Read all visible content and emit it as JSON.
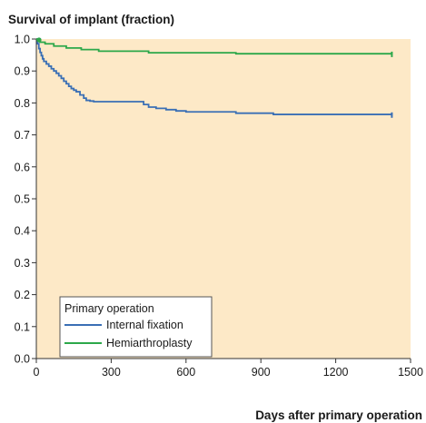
{
  "chart_data": {
    "type": "line",
    "ylabel": "Survival of implant (fraction)",
    "xlabel": "Days after primary operation",
    "xlim": [
      0,
      1500
    ],
    "ylim": [
      0.0,
      1.0
    ],
    "x_ticks": [
      0,
      300,
      600,
      900,
      1200,
      1500
    ],
    "x_tick_labels": [
      "0",
      "300",
      "600",
      "900",
      "1200",
      "1500"
    ],
    "y_ticks": [
      0.0,
      0.1,
      0.2,
      0.3,
      0.4,
      0.5,
      0.6,
      0.7,
      0.8,
      0.9,
      1.0
    ],
    "y_tick_labels": [
      "0.0",
      "0.1",
      "0.2",
      "0.3",
      "0.4",
      "0.5",
      "0.6",
      "0.7",
      "0.8",
      "0.9",
      "1.0"
    ],
    "grid": false,
    "step": true,
    "legend": {
      "title": "Primary operation",
      "position": "bottom-left"
    },
    "colors": {
      "plot_background": "#fde9c7",
      "axis": "#333333"
    },
    "series": [
      {
        "name": "Internal fixation",
        "color": "#3a6fb5",
        "x": [
          0,
          5,
          10,
          15,
          20,
          25,
          30,
          40,
          50,
          60,
          70,
          80,
          90,
          100,
          110,
          120,
          130,
          140,
          150,
          160,
          175,
          190,
          200,
          215,
          230,
          430,
          450,
          480,
          520,
          560,
          600,
          800,
          950,
          1425
        ],
        "y": [
          1.0,
          0.985,
          0.97,
          0.958,
          0.948,
          0.938,
          0.93,
          0.922,
          0.915,
          0.907,
          0.9,
          0.893,
          0.885,
          0.877,
          0.868,
          0.86,
          0.852,
          0.845,
          0.84,
          0.835,
          0.825,
          0.815,
          0.808,
          0.806,
          0.804,
          0.795,
          0.787,
          0.783,
          0.779,
          0.775,
          0.772,
          0.768,
          0.764,
          0.762
        ]
      },
      {
        "name": "Hemiarthroplasty",
        "color": "#2ca84a",
        "x": [
          0,
          15,
          35,
          70,
          120,
          180,
          250,
          450,
          800,
          1425
        ],
        "y": [
          1.0,
          0.99,
          0.985,
          0.978,
          0.972,
          0.967,
          0.962,
          0.957,
          0.954,
          0.952
        ]
      }
    ]
  }
}
